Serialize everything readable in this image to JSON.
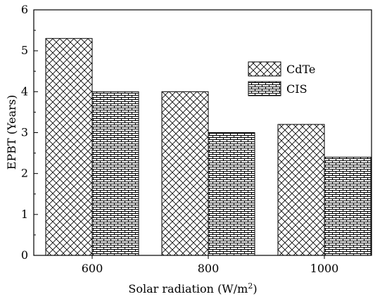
{
  "chart_data": {
    "type": "bar",
    "categories": [
      "600",
      "800",
      "1000"
    ],
    "series": [
      {
        "name": "CdTe",
        "values": [
          5.3,
          4.0,
          3.2
        ],
        "pattern": "crosshatch"
      },
      {
        "name": "CIS",
        "values": [
          4.0,
          3.0,
          2.4
        ],
        "pattern": "brick"
      }
    ],
    "xlabel": "Solar radiation (W/m",
    "xlabel_superscript": "2",
    "xlabel_suffix": ")",
    "ylabel": "EPBT (Years)",
    "ylim": [
      0,
      6
    ],
    "yticks": [
      "0",
      "1",
      "2",
      "3",
      "4",
      "5",
      "6"
    ],
    "grid": false,
    "legend_position": "top-right"
  }
}
